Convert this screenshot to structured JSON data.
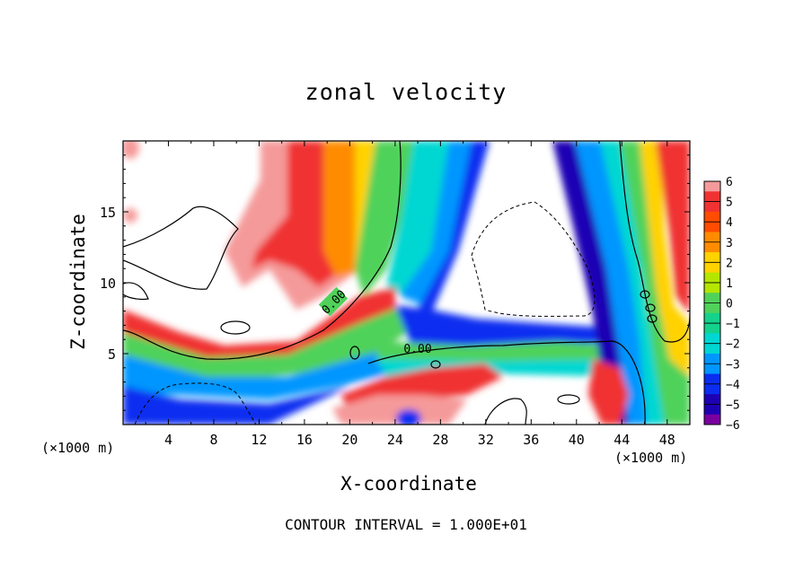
{
  "chart_data": {
    "type": "heatmap",
    "title": "zonal velocity",
    "xlabel": "X-coordinate",
    "ylabel": "Z-coordinate",
    "x_unit": "(×1000 m)",
    "xlim": [
      0,
      50
    ],
    "ylim": [
      0,
      20
    ],
    "x_ticks": [
      4,
      8,
      12,
      16,
      20,
      24,
      28,
      32,
      36,
      40,
      44,
      48
    ],
    "y_ticks": [
      5,
      10,
      15
    ],
    "colorbar": {
      "levels": [
        6,
        5,
        4,
        3,
        2,
        1,
        0,
        -1,
        -2,
        -3,
        -4,
        -5,
        -6
      ],
      "colors": [
        "#f59a9a",
        "#f03232",
        "#ff4c00",
        "#ff8c00",
        "#ffd200",
        "#b4e600",
        "#50d25a",
        "#14d28c",
        "#00d7d2",
        "#0096ff",
        "#0a2df0",
        "#1e00b4",
        "#7a00a0"
      ]
    },
    "contour_labels": [
      "0.00",
      "0.00"
    ],
    "footer": "CONTOUR INTERVAL = 1.000E+01",
    "grid": false
  }
}
